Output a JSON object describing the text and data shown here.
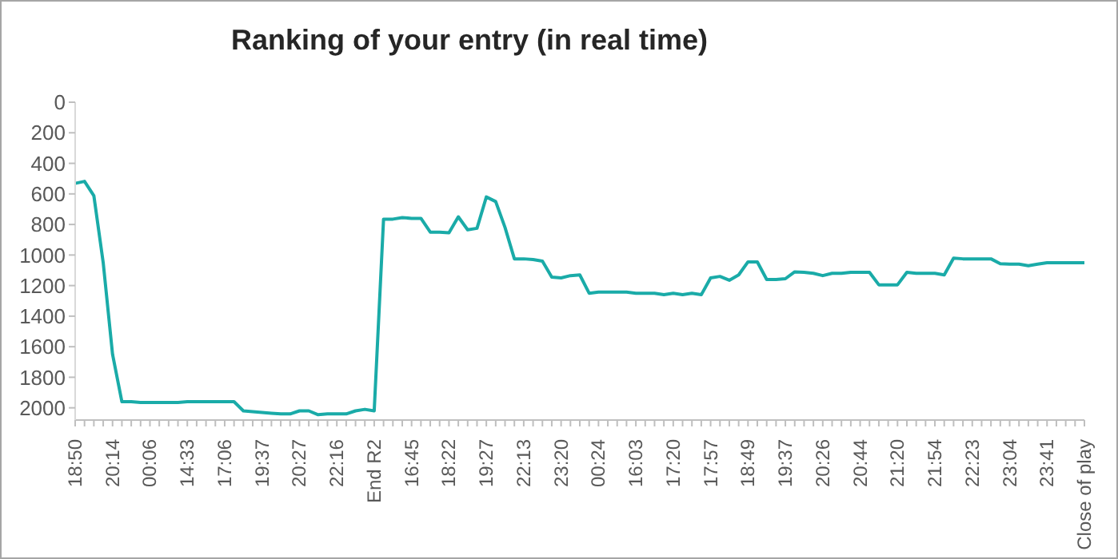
{
  "chart_data": {
    "type": "line",
    "title": "Ranking of your entry (in real time)",
    "categories": [
      "18:50",
      null,
      null,
      null,
      "20:14",
      null,
      null,
      null,
      "00:06",
      null,
      null,
      null,
      "14:33",
      null,
      null,
      null,
      "17:06",
      null,
      null,
      null,
      "19:37",
      null,
      null,
      null,
      "20:27",
      null,
      null,
      null,
      "22:16",
      null,
      null,
      null,
      "End R2",
      null,
      null,
      null,
      "16:45",
      null,
      null,
      null,
      "18:22",
      null,
      null,
      null,
      "19:27",
      null,
      null,
      null,
      "22:13",
      null,
      null,
      null,
      "23:20",
      null,
      null,
      null,
      "00:24",
      null,
      null,
      null,
      "16:03",
      null,
      null,
      null,
      "17:20",
      null,
      null,
      null,
      "17:57",
      null,
      null,
      null,
      "18:49",
      null,
      null,
      null,
      "19:37",
      null,
      null,
      null,
      "20:26",
      null,
      null,
      null,
      "20:44",
      null,
      null,
      null,
      "21:20",
      null,
      null,
      null,
      "21:54",
      null,
      null,
      null,
      "22:23",
      null,
      null,
      null,
      "23:04",
      null,
      null,
      null,
      "23:41",
      null,
      null,
      null,
      "Close of play"
    ],
    "series": [
      {
        "color": "#1aaba8",
        "values": [
          531,
          518,
          612,
          1050,
          1650,
          1960,
          1960,
          1965,
          1965,
          1965,
          1965,
          1965,
          1960,
          1960,
          1960,
          1960,
          1960,
          1960,
          2020,
          2025,
          2030,
          2035,
          2040,
          2040,
          2020,
          2020,
          2045,
          2040,
          2040,
          2040,
          2020,
          2010,
          2020,
          765,
          765,
          755,
          760,
          760,
          850,
          850,
          855,
          750,
          835,
          825,
          620,
          650,
          820,
          1025,
          1025,
          1030,
          1040,
          1145,
          1150,
          1135,
          1130,
          1250,
          1243,
          1243,
          1243,
          1243,
          1250,
          1250,
          1250,
          1260,
          1250,
          1260,
          1250,
          1260,
          1150,
          1140,
          1165,
          1130,
          1045,
          1045,
          1160,
          1160,
          1155,
          1110,
          1113,
          1120,
          1135,
          1120,
          1120,
          1113,
          1113,
          1113,
          1195,
          1195,
          1195,
          1113,
          1120,
          1120,
          1120,
          1130,
          1020,
          1025,
          1025,
          1025,
          1025,
          1057,
          1060,
          1060,
          1070,
          1060,
          1050,
          1050,
          1050,
          1050,
          1050
        ]
      }
    ],
    "ylim": [
      2080,
      0
    ],
    "yticks": [
      0,
      200,
      400,
      600,
      800,
      1000,
      1200,
      1400,
      1600,
      1800,
      2000
    ],
    "grid": false,
    "legend": false,
    "marker": "none",
    "line_style": "solid"
  }
}
